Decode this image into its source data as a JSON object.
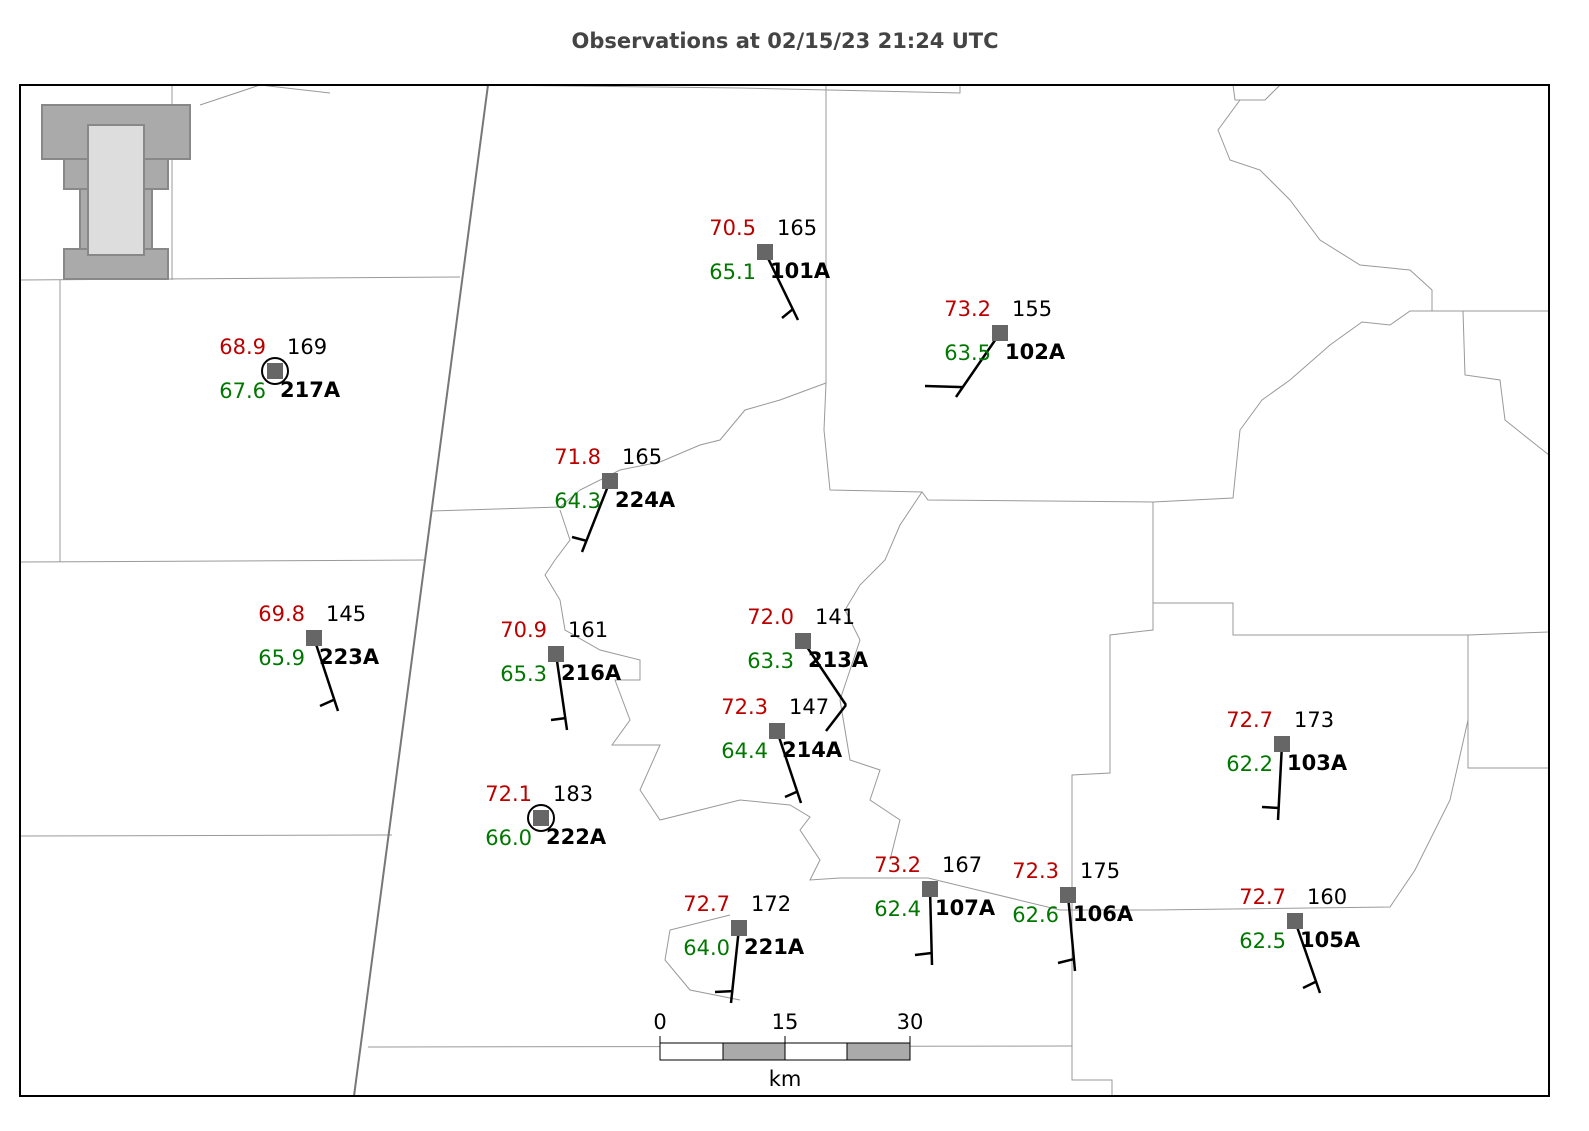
{
  "title": "Observations at 02/15/23 21:24 UTC",
  "stations": [
    {
      "id": "101A",
      "temperature": "70.5",
      "dewpoint": "65.1",
      "pressure": "165"
    },
    {
      "id": "102A",
      "temperature": "73.2",
      "dewpoint": "63.5",
      "pressure": "155"
    },
    {
      "id": "217A",
      "temperature": "68.9",
      "dewpoint": "67.6",
      "pressure": "169"
    },
    {
      "id": "224A",
      "temperature": "71.8",
      "dewpoint": "64.3",
      "pressure": "165"
    },
    {
      "id": "223A",
      "temperature": "69.8",
      "dewpoint": "65.9",
      "pressure": "145"
    },
    {
      "id": "216A",
      "temperature": "70.9",
      "dewpoint": "65.3",
      "pressure": "161"
    },
    {
      "id": "213A",
      "temperature": "72.0",
      "dewpoint": "63.3",
      "pressure": "141"
    },
    {
      "id": "214A",
      "temperature": "72.3",
      "dewpoint": "64.4",
      "pressure": "147"
    },
    {
      "id": "222A",
      "temperature": "72.1",
      "dewpoint": "66.0",
      "pressure": "183"
    },
    {
      "id": "221A",
      "temperature": "72.7",
      "dewpoint": "64.0",
      "pressure": "172"
    },
    {
      "id": "107A",
      "temperature": "73.2",
      "dewpoint": "62.4",
      "pressure": "167"
    },
    {
      "id": "106A",
      "temperature": "72.3",
      "dewpoint": "62.6",
      "pressure": "175"
    },
    {
      "id": "103A",
      "temperature": "72.7",
      "dewpoint": "62.2",
      "pressure": "173"
    },
    {
      "id": "105A",
      "temperature": "72.7",
      "dewpoint": "62.5",
      "pressure": "160"
    }
  ],
  "scale_bar": {
    "ticks": [
      "0",
      "15",
      "30"
    ],
    "unit": "km"
  }
}
